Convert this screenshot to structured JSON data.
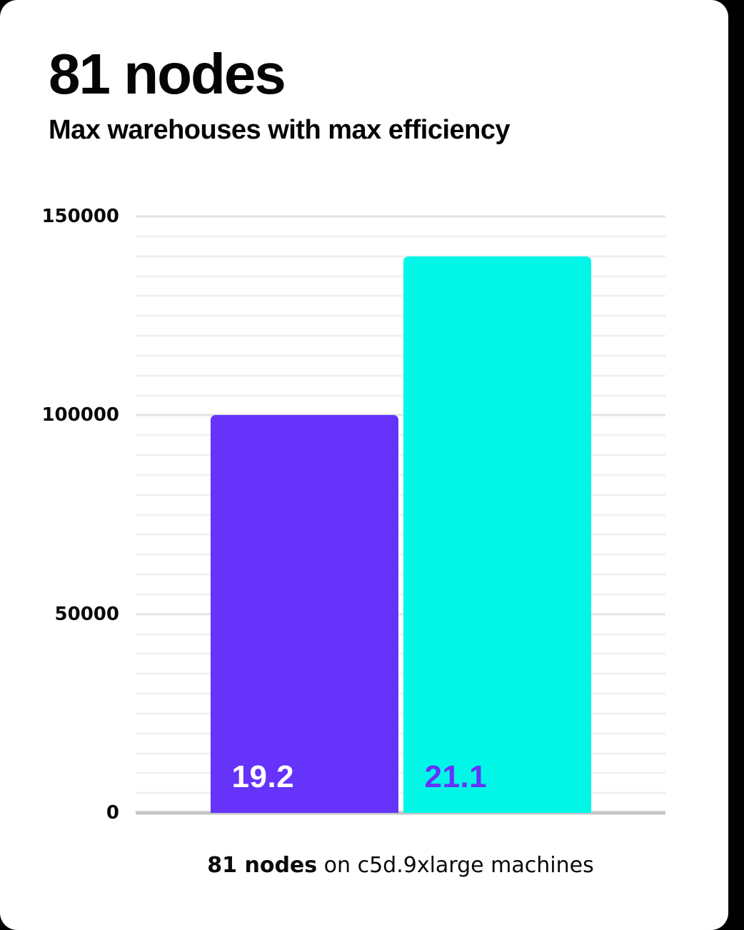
{
  "page": {
    "background_color": "#000000",
    "card_color": "#ffffff"
  },
  "header": {
    "title": "81 nodes",
    "subtitle": "Max warehouses with max efficiency"
  },
  "chart_data": {
    "type": "bar",
    "title": "81 nodes",
    "subtitle": "Max warehouses with max efficiency",
    "categories": [
      "19.2",
      "21.1"
    ],
    "values": [
      100000,
      140000
    ],
    "bar_labels": [
      "19.2",
      "21.1"
    ],
    "xlabel": "",
    "ylabel": "",
    "ylim": [
      0,
      150000
    ],
    "yticks": [
      0,
      50000,
      100000,
      150000
    ],
    "ytick_labels": [
      "0",
      "50000",
      "100000",
      "150000"
    ],
    "minor_grid_step": 5000,
    "grid": true,
    "legend_position": "none",
    "colors": {
      "bar_fills": [
        "#6533fa",
        "#00f7e8"
      ],
      "bar_label_colors": [
        "#ffffff",
        "#6533fa"
      ],
      "grid_minor": "#f0f0f0",
      "grid_major": "#e3e3e3",
      "baseline": "#c4c4c4",
      "text": "#0a0a0a"
    }
  },
  "caption": {
    "bold": "81 nodes",
    "rest": " on c5d.9xlarge machines"
  }
}
